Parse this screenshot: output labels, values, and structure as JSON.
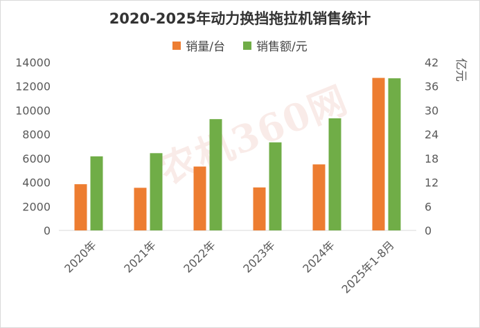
{
  "chart_data": {
    "type": "bar",
    "title": "2020-2025年动力换挡拖拉机销售统计",
    "categories": [
      "2020年",
      "2021年",
      "2022年",
      "2023年",
      "2024年",
      "2025年1-8月"
    ],
    "series": [
      {
        "name": "销量/台",
        "axis": "left",
        "color": "#ED7D31",
        "values": [
          3850,
          3550,
          5320,
          3580,
          5500,
          12700
        ]
      },
      {
        "name": "销售额/元",
        "axis": "right",
        "color": "#70AD47",
        "values": [
          18.5,
          19.3,
          27.8,
          22.0,
          28.0,
          38.0
        ]
      }
    ],
    "y_left": {
      "min": 0,
      "max": 14000,
      "ticks": [
        "0",
        "2000",
        "4000",
        "6000",
        "8000",
        "10000",
        "12000",
        "14000"
      ]
    },
    "y_right": {
      "min": 0,
      "max": 42,
      "label": "亿元",
      "ticks": [
        "0",
        "6",
        "12",
        "18",
        "24",
        "30",
        "36",
        "42"
      ]
    },
    "legend_position": "top",
    "grid": false,
    "watermark": "农机360网"
  }
}
